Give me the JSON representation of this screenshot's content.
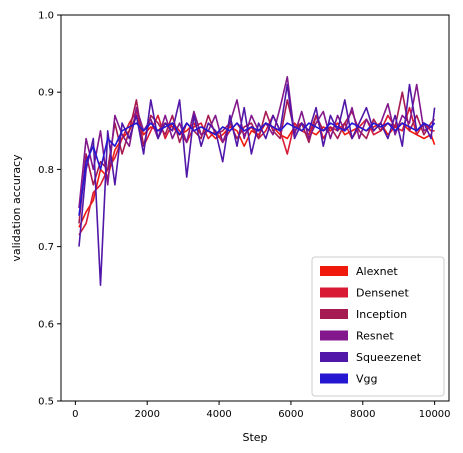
{
  "chart_data": {
    "type": "line",
    "title": "",
    "xlabel": "Step",
    "ylabel": "validation accuracy",
    "xlim": [
      -400,
      10400
    ],
    "ylim": [
      0.5,
      1.0
    ],
    "xticks": [
      0,
      2000,
      4000,
      6000,
      8000,
      10000
    ],
    "xtick_labels": [
      "0",
      "2000",
      "4000",
      "6000",
      "8000",
      "10000"
    ],
    "yticks": [
      0.5,
      0.6,
      0.7,
      0.8,
      0.9,
      1.0
    ],
    "ytick_labels": [
      "0.5",
      "0.6",
      "0.7",
      "0.8",
      "0.9",
      "1.0"
    ],
    "grid": false,
    "legend_position": "lower-right",
    "x": [
      100,
      300,
      500,
      700,
      900,
      1100,
      1300,
      1500,
      1700,
      1900,
      2100,
      2300,
      2500,
      2700,
      2900,
      3100,
      3300,
      3500,
      3700,
      3900,
      4100,
      4300,
      4500,
      4700,
      4900,
      5100,
      5300,
      5500,
      5700,
      5900,
      6100,
      6300,
      6500,
      6700,
      6900,
      7100,
      7300,
      7500,
      7700,
      7900,
      8100,
      8300,
      8500,
      8700,
      8900,
      9100,
      9300,
      9500,
      9700,
      9900,
      10000
    ],
    "series": [
      {
        "name": "Alexnet",
        "color": "#f01a0c",
        "values": [
          0.725,
          0.745,
          0.76,
          0.8,
          0.79,
          0.825,
          0.84,
          0.85,
          0.87,
          0.845,
          0.855,
          0.85,
          0.86,
          0.855,
          0.845,
          0.85,
          0.86,
          0.845,
          0.85,
          0.84,
          0.845,
          0.855,
          0.85,
          0.83,
          0.85,
          0.845,
          0.86,
          0.855,
          0.845,
          0.84,
          0.855,
          0.86,
          0.85,
          0.845,
          0.855,
          0.85,
          0.86,
          0.845,
          0.85,
          0.855,
          0.85,
          0.855,
          0.86,
          0.845,
          0.855,
          0.86,
          0.85,
          0.845,
          0.84,
          0.845,
          0.832
        ]
      },
      {
        "name": "Densenet",
        "color": "#d81a35",
        "values": [
          0.715,
          0.73,
          0.77,
          0.78,
          0.8,
          0.815,
          0.84,
          0.86,
          0.875,
          0.83,
          0.85,
          0.87,
          0.84,
          0.86,
          0.85,
          0.835,
          0.855,
          0.86,
          0.84,
          0.85,
          0.835,
          0.85,
          0.86,
          0.845,
          0.855,
          0.84,
          0.85,
          0.87,
          0.85,
          0.82,
          0.86,
          0.85,
          0.845,
          0.87,
          0.84,
          0.855,
          0.85,
          0.86,
          0.84,
          0.855,
          0.865,
          0.845,
          0.85,
          0.87,
          0.855,
          0.85,
          0.88,
          0.845,
          0.86,
          0.85,
          0.85
        ]
      },
      {
        "name": "Inception",
        "color": "#a61a52",
        "values": [
          0.73,
          0.82,
          0.78,
          0.81,
          0.8,
          0.86,
          0.82,
          0.85,
          0.89,
          0.83,
          0.87,
          0.86,
          0.845,
          0.87,
          0.835,
          0.86,
          0.85,
          0.84,
          0.87,
          0.845,
          0.85,
          0.86,
          0.84,
          0.855,
          0.86,
          0.84,
          0.875,
          0.85,
          0.84,
          0.89,
          0.85,
          0.86,
          0.835,
          0.87,
          0.85,
          0.855,
          0.84,
          0.86,
          0.875,
          0.85,
          0.84,
          0.865,
          0.85,
          0.86,
          0.855,
          0.9,
          0.85,
          0.87,
          0.845,
          0.86,
          0.865
        ]
      },
      {
        "name": "Resnet",
        "color": "#82188c",
        "values": [
          0.75,
          0.84,
          0.8,
          0.85,
          0.78,
          0.87,
          0.845,
          0.83,
          0.88,
          0.85,
          0.865,
          0.84,
          0.87,
          0.84,
          0.86,
          0.835,
          0.875,
          0.845,
          0.85,
          0.87,
          0.835,
          0.86,
          0.89,
          0.84,
          0.87,
          0.85,
          0.86,
          0.845,
          0.88,
          0.92,
          0.845,
          0.875,
          0.84,
          0.86,
          0.875,
          0.84,
          0.87,
          0.85,
          0.88,
          0.84,
          0.865,
          0.85,
          0.86,
          0.885,
          0.845,
          0.87,
          0.86,
          0.91,
          0.85,
          0.855,
          0.86
        ]
      },
      {
        "name": "Squeezenet",
        "color": "#5017a8",
        "values": [
          0.7,
          0.8,
          0.84,
          0.65,
          0.85,
          0.78,
          0.86,
          0.84,
          0.87,
          0.82,
          0.89,
          0.84,
          0.86,
          0.85,
          0.89,
          0.79,
          0.87,
          0.83,
          0.86,
          0.85,
          0.81,
          0.87,
          0.83,
          0.88,
          0.82,
          0.86,
          0.84,
          0.87,
          0.85,
          0.91,
          0.84,
          0.86,
          0.85,
          0.88,
          0.83,
          0.87,
          0.85,
          0.89,
          0.84,
          0.86,
          0.88,
          0.85,
          0.86,
          0.84,
          0.87,
          0.83,
          0.91,
          0.85,
          0.86,
          0.84,
          0.88
        ]
      },
      {
        "name": "Vgg",
        "color": "#2516d2",
        "values": [
          0.74,
          0.81,
          0.83,
          0.8,
          0.84,
          0.83,
          0.85,
          0.855,
          0.86,
          0.85,
          0.86,
          0.85,
          0.855,
          0.86,
          0.845,
          0.86,
          0.85,
          0.855,
          0.85,
          0.845,
          0.855,
          0.85,
          0.86,
          0.85,
          0.855,
          0.85,
          0.86,
          0.855,
          0.85,
          0.86,
          0.855,
          0.85,
          0.86,
          0.855,
          0.85,
          0.86,
          0.855,
          0.85,
          0.86,
          0.855,
          0.85,
          0.86,
          0.855,
          0.86,
          0.85,
          0.86,
          0.855,
          0.85,
          0.86,
          0.855,
          0.86
        ]
      }
    ]
  }
}
